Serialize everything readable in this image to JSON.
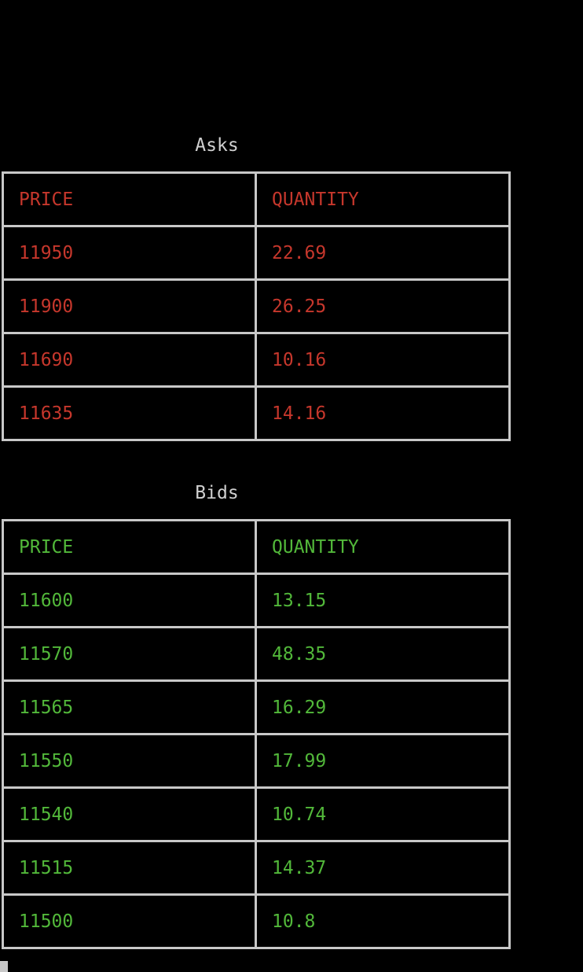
{
  "asks": {
    "title": "Asks",
    "color": "#c6372c",
    "headers": {
      "price": "PRICE",
      "quantity": "QUANTITY"
    },
    "rows": [
      {
        "price": "11950",
        "quantity": "22.69"
      },
      {
        "price": "11900",
        "quantity": "26.25"
      },
      {
        "price": "11690",
        "quantity": "10.16"
      },
      {
        "price": "11635",
        "quantity": "14.16"
      }
    ]
  },
  "bids": {
    "title": "Bids",
    "color": "#52b83a",
    "headers": {
      "price": "PRICE",
      "quantity": "QUANTITY"
    },
    "rows": [
      {
        "price": "11600",
        "quantity": "13.15"
      },
      {
        "price": "11570",
        "quantity": "48.35"
      },
      {
        "price": "11565",
        "quantity": "16.29"
      },
      {
        "price": "11550",
        "quantity": "17.99"
      },
      {
        "price": "11540",
        "quantity": "10.74"
      },
      {
        "price": "11515",
        "quantity": "14.37"
      },
      {
        "price": "11500",
        "quantity": "10.8"
      }
    ]
  },
  "cursor": {
    "icon": "block-cursor-icon"
  }
}
